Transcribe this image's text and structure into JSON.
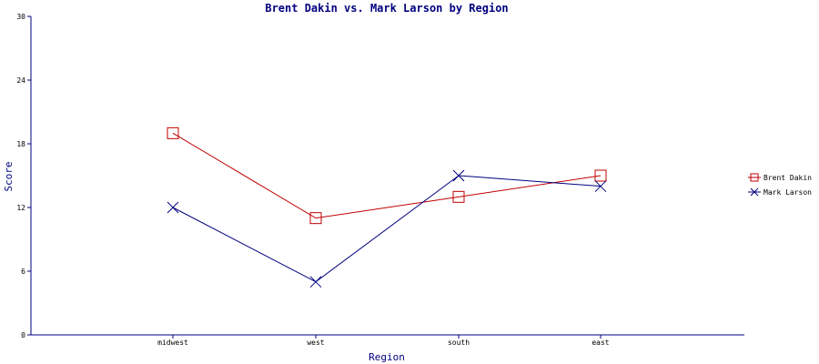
{
  "chart_data": {
    "type": "line",
    "title": "Brent Dakin vs. Mark Larson by Region",
    "xlabel": "Region",
    "ylabel": "Score",
    "categories": [
      "midwest",
      "west",
      "south",
      "east"
    ],
    "ylim": [
      0,
      30
    ],
    "yticks": [
      0,
      6,
      12,
      18,
      24,
      30
    ],
    "grid": false,
    "legend_position": "right",
    "series": [
      {
        "name": "Brent Dakin",
        "values": [
          19,
          11,
          13,
          15
        ],
        "color": "#c00000",
        "marker": "square"
      },
      {
        "name": "Mark Larson",
        "values": [
          12,
          5,
          15,
          14
        ],
        "color": "#000080",
        "marker": "x"
      }
    ]
  }
}
